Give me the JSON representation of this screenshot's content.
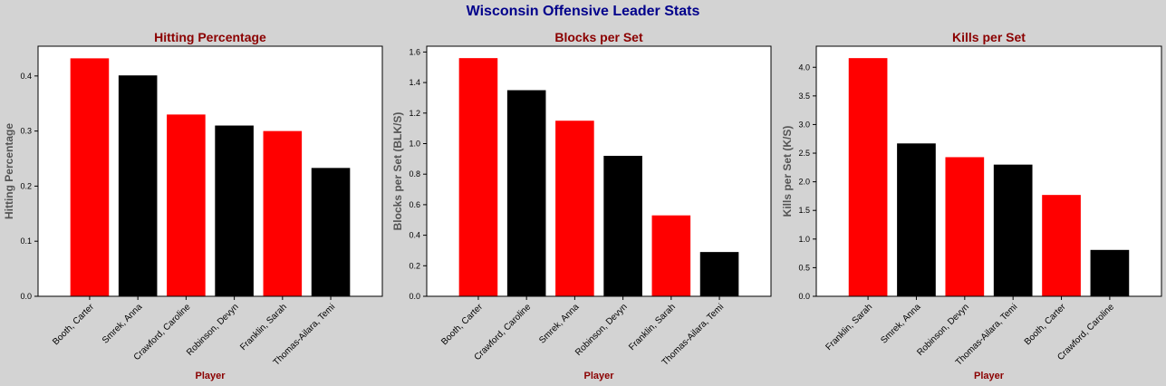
{
  "title": "Wisconsin Offensive Leader Stats",
  "colors": {
    "red": "#ff0000",
    "black": "#000000",
    "title": "#00008b",
    "panel_title": "#8b0000",
    "axis_label": "#555555",
    "background": "#d3d3d3"
  },
  "chart_data": [
    {
      "type": "bar",
      "title": "Hitting Percentage",
      "xlabel": "Player",
      "ylabel": "Hitting Percentage",
      "categories": [
        "Booth, Carter",
        "Smrek, Anna",
        "Crawford, Caroline",
        "Robinson, Devyn",
        "Franklin, Sarah",
        "Thomas-Ailara, Temi"
      ],
      "values": [
        0.432,
        0.401,
        0.33,
        0.31,
        0.3,
        0.233
      ],
      "bar_colors": [
        "#ff0000",
        "#000000",
        "#ff0000",
        "#000000",
        "#ff0000",
        "#000000"
      ],
      "ylim": [
        0,
        0.454
      ],
      "yticks": [
        0.0,
        0.1,
        0.2,
        0.3,
        0.4
      ],
      "ytick_labels": [
        "0.0",
        "0.1",
        "0.2",
        "0.3",
        "0.4"
      ],
      "grid": false
    },
    {
      "type": "bar",
      "title": "Blocks per Set",
      "xlabel": "Player",
      "ylabel": "Blocks per Set (BLK/S)",
      "categories": [
        "Booth, Carter",
        "Crawford, Caroline",
        "Smrek, Anna",
        "Robinson, Devyn",
        "Franklin, Sarah",
        "Thomas-Ailara, Temi"
      ],
      "values": [
        1.56,
        1.35,
        1.15,
        0.92,
        0.53,
        0.29
      ],
      "bar_colors": [
        "#ff0000",
        "#000000",
        "#ff0000",
        "#000000",
        "#ff0000",
        "#000000"
      ],
      "ylim": [
        0,
        1.638
      ],
      "yticks": [
        0.0,
        0.2,
        0.4,
        0.6,
        0.8,
        1.0,
        1.2,
        1.4,
        1.6
      ],
      "ytick_labels": [
        "0.0",
        "0.2",
        "0.4",
        "0.6",
        "0.8",
        "1.0",
        "1.2",
        "1.4",
        "1.6"
      ],
      "grid": false
    },
    {
      "type": "bar",
      "title": "Kills per Set",
      "xlabel": "Player",
      "ylabel": "Kills per Set (K/S)",
      "categories": [
        "Franklin, Sarah",
        "Smrek, Anna",
        "Robinson, Devyn",
        "Thomas-Ailara, Temi",
        "Booth, Carter",
        "Crawford, Caroline"
      ],
      "values": [
        4.16,
        2.67,
        2.43,
        2.3,
        1.77,
        0.81
      ],
      "bar_colors": [
        "#ff0000",
        "#000000",
        "#ff0000",
        "#000000",
        "#ff0000",
        "#000000"
      ],
      "ylim": [
        0,
        4.368
      ],
      "yticks": [
        0.0,
        0.5,
        1.0,
        1.5,
        2.0,
        2.5,
        3.0,
        3.5,
        4.0
      ],
      "ytick_labels": [
        "0.0",
        "0.5",
        "1.0",
        "1.5",
        "2.0",
        "2.5",
        "3.0",
        "3.5",
        "4.0"
      ],
      "grid": false
    }
  ]
}
